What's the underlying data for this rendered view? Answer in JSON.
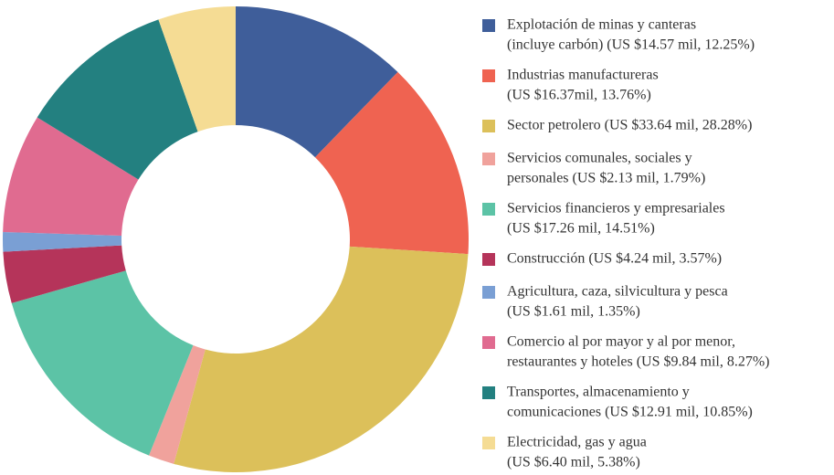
{
  "chart_data": {
    "type": "donut",
    "categories": [
      [
        "Explotación de minas y canteras",
        "(incluye carbón) (US $14.57 mil, 12.25%)"
      ],
      [
        "Industrias manufactureras",
        "(US $16.37mil, 13.76%)"
      ],
      [
        "Sector petrolero (US $33.64 mil, 28.28%)"
      ],
      [
        "Servicios comunales, sociales y",
        "personales (US $2.13 mil, 1.79%)"
      ],
      [
        "Servicios financieros y empresariales",
        "(US $17.26 mil, 14.51%)"
      ],
      [
        "Construcción (US $4.24 mil, 3.57%)"
      ],
      [
        "Agricultura, caza, silvicultura y pesca",
        "(US $1.61 mil, 1.35%)"
      ],
      [
        "Comercio al por mayor y al por menor,",
        "restaurantes y hoteles (US $9.84 mil, 8.27%)"
      ],
      [
        "Transportes, almacenamiento y",
        "comunicaciones (US $12.91 mil, 10.85%)"
      ],
      [
        "Electricidad, gas y agua",
        "(US $6.40 mil, 5.38%)"
      ]
    ],
    "values": [
      12.25,
      13.76,
      28.28,
      1.79,
      14.51,
      3.57,
      1.35,
      8.27,
      10.85,
      5.38
    ],
    "colors": [
      "#3f5e9a",
      "#ef6351",
      "#dcc05a",
      "#f0a29c",
      "#5cc3a6",
      "#b5345a",
      "#7a9fd4",
      "#e06b90",
      "#238080",
      "#f5dc94"
    ],
    "legend": "right"
  }
}
